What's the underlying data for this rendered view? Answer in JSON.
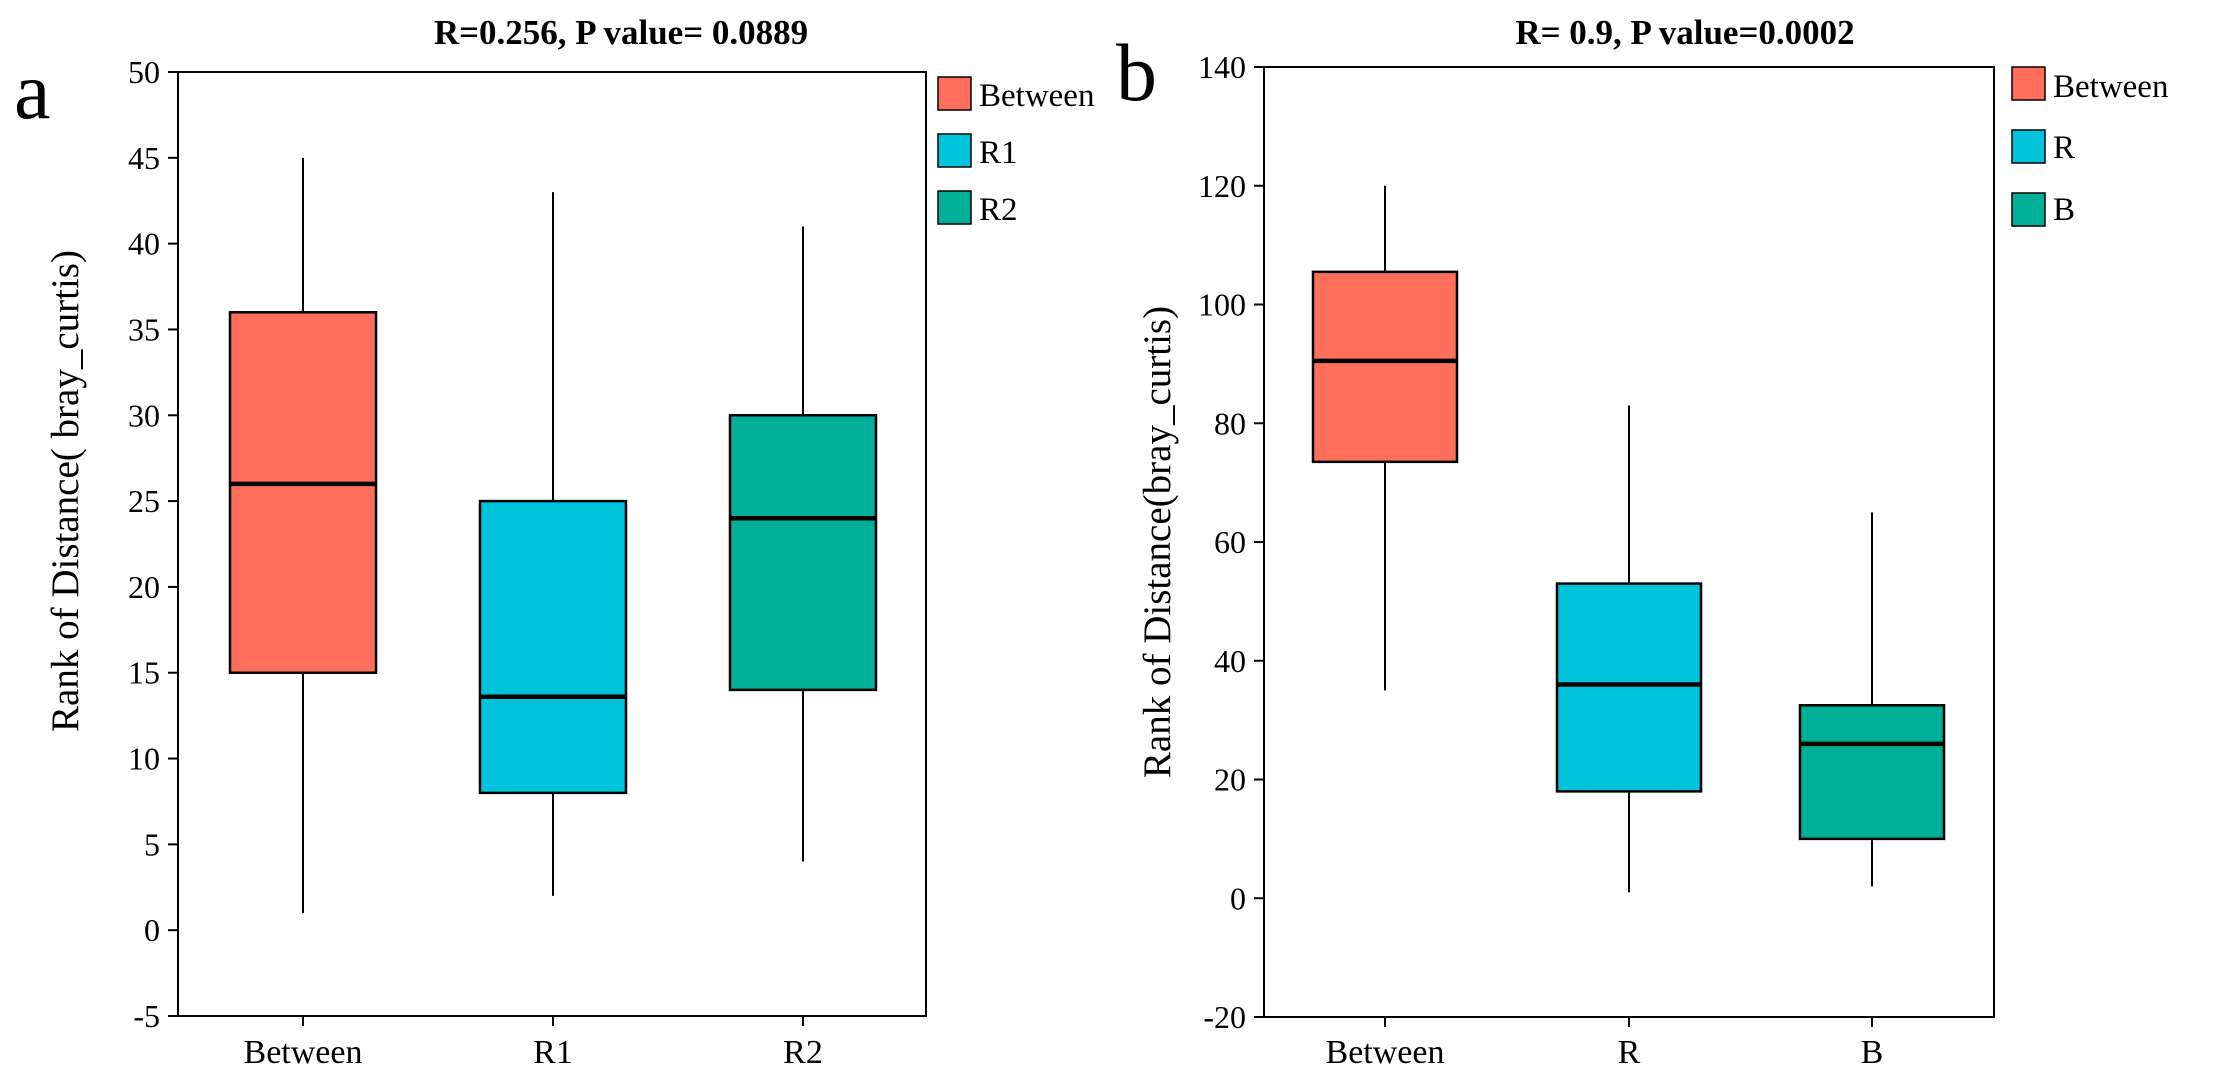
{
  "colors": {
    "between": "#FF6F5B",
    "group1": "#00C4DC",
    "group2": "#00AF97",
    "axis": "#000000",
    "background": "#ffffff"
  },
  "chart_data": [
    {
      "type": "box",
      "panel_label": "a",
      "title": "R=0.256, P value= 0.0889",
      "xlabel": "",
      "ylabel": "Rank of Distance( bray_curtis)",
      "ylim": [
        -5,
        50
      ],
      "yticks": [
        -5,
        0,
        5,
        10,
        15,
        20,
        25,
        30,
        35,
        40,
        45,
        50
      ],
      "grid": false,
      "legend_position": "right",
      "legend": [
        "Between",
        "R1",
        "R2"
      ],
      "categories": [
        "Between",
        "R1",
        "R2"
      ],
      "boxes": [
        {
          "name": "Between",
          "min": 1,
          "q1": 15,
          "median": 26,
          "q3": 36,
          "max": 45
        },
        {
          "name": "R1",
          "min": 2,
          "q1": 8,
          "median": 13.6,
          "q3": 25,
          "max": 43
        },
        {
          "name": "R2",
          "min": 4,
          "q1": 14,
          "median": 24,
          "q3": 30,
          "max": 41
        }
      ]
    },
    {
      "type": "box",
      "panel_label": "b",
      "title": "R= 0.9, P value=0.0002",
      "xlabel": "",
      "ylabel": "Rank of Distance(bray_curtis)",
      "ylim": [
        -20,
        140
      ],
      "yticks": [
        -20,
        0,
        20,
        40,
        60,
        80,
        100,
        120,
        140
      ],
      "grid": false,
      "legend_position": "right",
      "legend": [
        "Between",
        "R",
        "B"
      ],
      "categories": [
        "Between",
        "R",
        "B"
      ],
      "boxes": [
        {
          "name": "Between",
          "min": 35,
          "q1": 73.5,
          "median": 90.5,
          "q3": 105.5,
          "max": 120
        },
        {
          "name": "R",
          "min": 1,
          "q1": 18,
          "median": 36,
          "q3": 53,
          "max": 83
        },
        {
          "name": "B",
          "min": 2,
          "q1": 10,
          "median": 26,
          "q3": 32.5,
          "max": 65
        }
      ]
    }
  ]
}
